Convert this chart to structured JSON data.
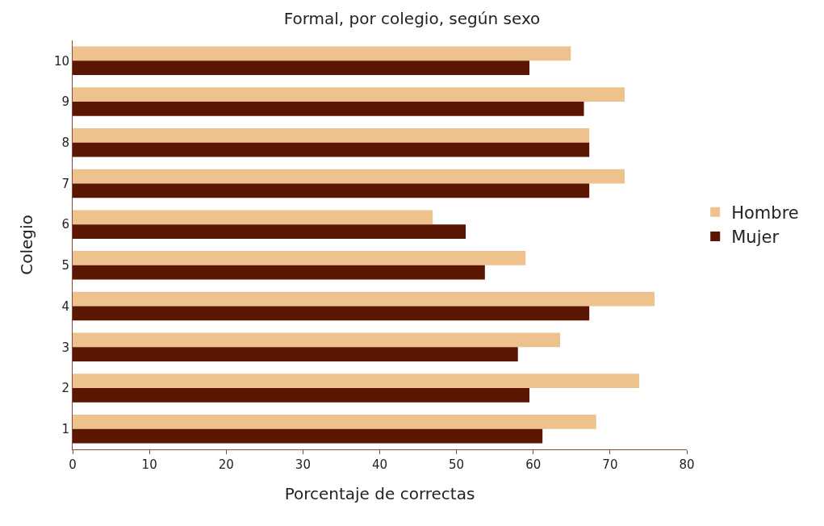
{
  "chart_data": {
    "type": "bar",
    "orientation": "horizontal",
    "title": "Formal, por colegio, según sexo",
    "xlabel": "Porcentaje de correctas",
    "ylabel": "Colegio",
    "categories": [
      "10",
      "9",
      "8",
      "7",
      "6",
      "5",
      "4",
      "3",
      "2",
      "1"
    ],
    "series": [
      {
        "name": "Hombre",
        "color": "#edc28c",
        "values": [
          64.9,
          71.9,
          67.3,
          71.9,
          46.9,
          59.0,
          75.8,
          63.5,
          73.8,
          68.2
        ]
      },
      {
        "name": "Mujer",
        "color": "#5a1600",
        "values": [
          59.5,
          66.6,
          67.3,
          67.3,
          51.2,
          53.7,
          67.3,
          58.0,
          59.5,
          61.2
        ]
      }
    ],
    "xlim": [
      0,
      80
    ],
    "xticks": [
      0,
      10,
      20,
      30,
      40,
      50,
      60,
      70,
      80
    ],
    "grid": false,
    "legend": "right"
  }
}
